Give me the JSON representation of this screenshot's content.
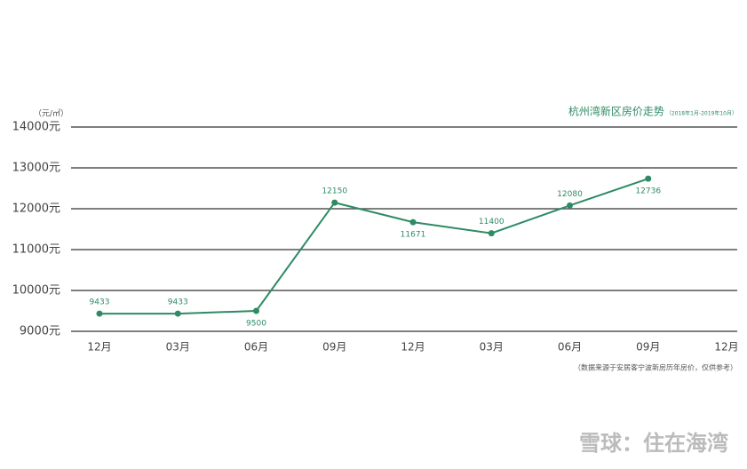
{
  "chart_data": {
    "type": "line",
    "title": "杭州湾新区房价走势",
    "subtitle": "（2018年1月-2019年10月）",
    "y_label": "（元/㎡）",
    "note": "（数据来源于安居客宁波新房历年房价，仅供参考）",
    "watermark": "雪球：住在海湾",
    "categories": [
      "12月",
      "03月",
      "06月",
      "09月",
      "12月",
      "03月",
      "06月",
      "09月",
      "12月"
    ],
    "series": [
      {
        "name": "杭州湾新区房价",
        "color": "#2e8b64",
        "values": [
          9433,
          9433,
          9500,
          12150,
          11671,
          11400,
          12080,
          12736,
          null
        ]
      }
    ],
    "ylim": [
      9000,
      14000
    ],
    "yticks": [
      {
        "value": 9000,
        "label": "9000元"
      },
      {
        "value": 10000,
        "label": "10000元"
      },
      {
        "value": 11000,
        "label": "11000元"
      },
      {
        "value": 12000,
        "label": "12000元"
      },
      {
        "value": 13000,
        "label": "13000元"
      },
      {
        "value": 14000,
        "label": "14000元"
      }
    ],
    "grid": true
  }
}
